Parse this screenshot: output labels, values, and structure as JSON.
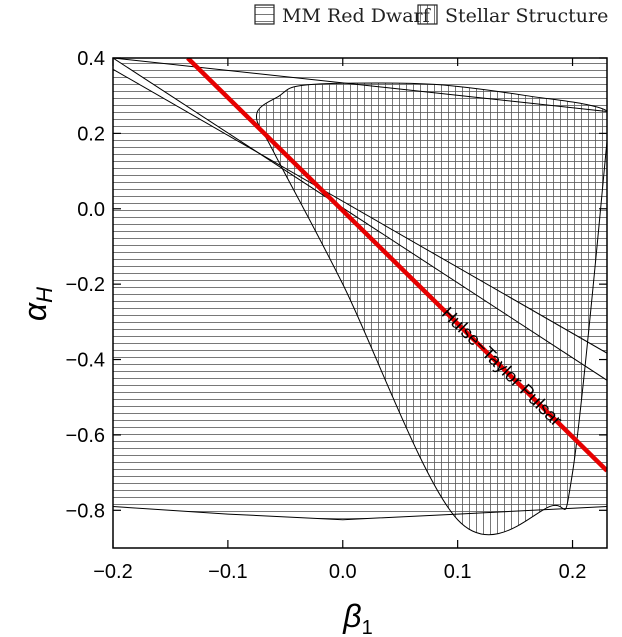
{
  "chart_data": {
    "type": "area",
    "xlabel": "β",
    "xlabel_sub": "1",
    "ylabel": "α",
    "ylabel_sub": "H",
    "xlim": [
      -0.2,
      0.23
    ],
    "ylim": [
      -0.9,
      0.4
    ],
    "x_ticks": [
      -0.2,
      -0.1,
      0.0,
      0.1,
      0.2
    ],
    "x_tick_labels": [
      "−0.2",
      "−0.1",
      "0.0",
      "0.1",
      "0.2"
    ],
    "y_ticks": [
      0.4,
      0.2,
      0.0,
      -0.2,
      -0.4,
      -0.6,
      -0.8
    ],
    "y_tick_labels": [
      "0.4",
      "0.2",
      "0.0",
      "−0.2",
      "−0.4",
      "−0.6",
      "−0.8"
    ],
    "legend_position": "top",
    "series": [
      {
        "name": "MM Red Dwarf",
        "hatch": "horizontal",
        "boundaries": [
          {
            "x": [
              -0.2,
              0.23
            ],
            "y": [
              0.4,
              -0.455
            ]
          },
          {
            "x": [
              -0.2,
              0.23
            ],
            "y": [
              0.37,
              -0.383
            ]
          },
          {
            "x": [
              -0.2,
              0.23
            ],
            "y": [
              0.4,
              0.258
            ]
          },
          {
            "x": [
              -0.2,
              -0.1,
              0.0,
              0.1,
              0.23
            ],
            "y": [
              -0.79,
              -0.81,
              -0.825,
              -0.81,
              -0.79
            ]
          }
        ]
      },
      {
        "name": "Stellar Structure",
        "hatch": "vertical",
        "boundary": {
          "x": [
            -0.055,
            -0.04,
            0.0,
            0.08,
            0.16,
            0.23,
            0.23,
            0.2,
            0.18,
            0.1,
            0.0,
            -0.06,
            -0.075,
            -0.055
          ],
          "y": [
            0.3,
            0.325,
            0.333,
            0.33,
            0.3,
            0.26,
            0.18,
            -0.7,
            -0.79,
            -0.825,
            -0.2,
            0.15,
            0.25,
            0.3
          ]
        }
      },
      {
        "name": "Hulse-Taylor Pulsar",
        "color": "#e60000",
        "x": [
          -0.135,
          0.23
        ],
        "y": [
          0.4,
          -0.695
        ]
      }
    ],
    "annotations": [
      {
        "text": "Hulse−Taylor Pulsar",
        "x": 0.135,
        "y": -0.43
      }
    ]
  }
}
